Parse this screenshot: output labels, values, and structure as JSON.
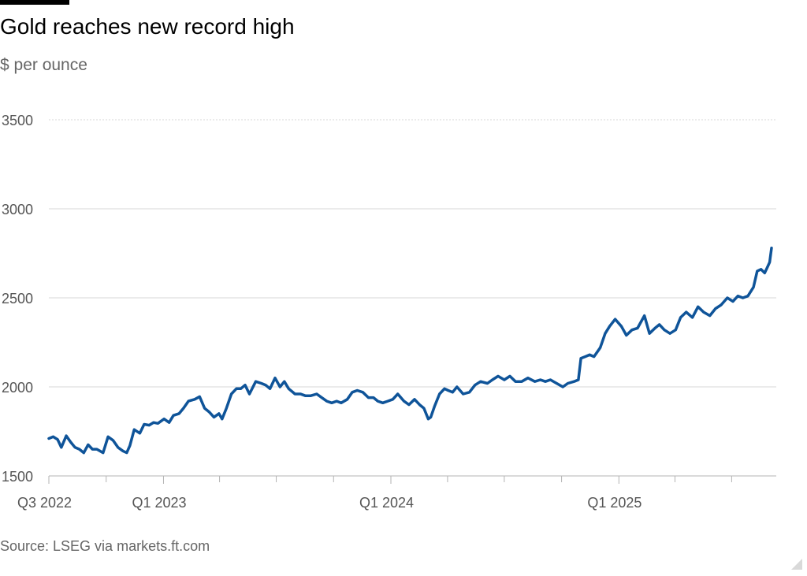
{
  "header": {
    "title": "Gold reaches new record high",
    "subtitle": "$ per ounce"
  },
  "footer": {
    "source": "Source: LSEG via markets.ft.com"
  },
  "colors": {
    "line": "#0f5499",
    "grid": "#d7d7d7",
    "tick_text": "#555555",
    "axis": "#b3b3b3"
  },
  "chart_data": {
    "type": "line",
    "title": "Gold reaches new record high",
    "ylabel": "$ per ounce",
    "xlabel": "",
    "ylim": [
      1500,
      3500
    ],
    "yticks": [
      1500,
      2000,
      2500,
      3000,
      3500
    ],
    "xlim": [
      "2022-07-01",
      "2025-09-03"
    ],
    "x_tick_labels": [
      {
        "date": "2022-07-01",
        "label": "Q3 2022"
      },
      {
        "date": "2023-01-01",
        "label": "Q1 2023"
      },
      {
        "date": "2024-01-01",
        "label": "Q1 2024"
      },
      {
        "date": "2025-01-01",
        "label": "Q1 2025"
      }
    ],
    "x_minor_ticks": [
      "2022-10-01",
      "2023-04-01",
      "2023-07-01",
      "2023-10-01",
      "2024-04-01",
      "2024-07-01",
      "2024-10-01",
      "2025-04-01",
      "2025-07-01"
    ],
    "grid": true,
    "series": [
      {
        "points": [
          [
            "2022-07-01",
            1710
          ],
          [
            "2022-07-08",
            1720
          ],
          [
            "2022-07-15",
            1705
          ],
          [
            "2022-07-21",
            1660
          ],
          [
            "2022-07-29",
            1725
          ],
          [
            "2022-08-05",
            1690
          ],
          [
            "2022-08-12",
            1660
          ],
          [
            "2022-08-19",
            1650
          ],
          [
            "2022-08-26",
            1630
          ],
          [
            "2022-09-02",
            1675
          ],
          [
            "2022-09-09",
            1650
          ],
          [
            "2022-09-16",
            1650
          ],
          [
            "2022-09-26",
            1630
          ],
          [
            "2022-10-04",
            1720
          ],
          [
            "2022-10-12",
            1700
          ],
          [
            "2022-10-20",
            1660
          ],
          [
            "2022-10-28",
            1640
          ],
          [
            "2022-11-03",
            1630
          ],
          [
            "2022-11-08",
            1670
          ],
          [
            "2022-11-15",
            1760
          ],
          [
            "2022-11-24",
            1740
          ],
          [
            "2022-12-01",
            1790
          ],
          [
            "2022-12-09",
            1785
          ],
          [
            "2022-12-16",
            1800
          ],
          [
            "2022-12-23",
            1795
          ],
          [
            "2023-01-02",
            1820
          ],
          [
            "2023-01-10",
            1800
          ],
          [
            "2023-01-17",
            1840
          ],
          [
            "2023-01-26",
            1850
          ],
          [
            "2023-02-02",
            1880
          ],
          [
            "2023-02-10",
            1920
          ],
          [
            "2023-02-20",
            1930
          ],
          [
            "2023-02-28",
            1945
          ],
          [
            "2023-03-08",
            1880
          ],
          [
            "2023-03-15",
            1860
          ],
          [
            "2023-03-23",
            1830
          ],
          [
            "2023-03-31",
            1850
          ],
          [
            "2023-04-05",
            1820
          ],
          [
            "2023-04-12",
            1880
          ],
          [
            "2023-04-20",
            1960
          ],
          [
            "2023-04-28",
            1990
          ],
          [
            "2023-05-05",
            1990
          ],
          [
            "2023-05-12",
            2010
          ],
          [
            "2023-05-19",
            1960
          ],
          [
            "2023-05-29",
            2030
          ],
          [
            "2023-06-07",
            2020
          ],
          [
            "2023-06-14",
            2010
          ],
          [
            "2023-06-21",
            1990
          ],
          [
            "2023-06-29",
            2050
          ],
          [
            "2023-07-07",
            2000
          ],
          [
            "2023-07-14",
            2030
          ],
          [
            "2023-07-21",
            1990
          ],
          [
            "2023-07-31",
            1960
          ],
          [
            "2023-08-09",
            1960
          ],
          [
            "2023-08-17",
            1950
          ],
          [
            "2023-08-25",
            1950
          ],
          [
            "2023-09-04",
            1960
          ],
          [
            "2023-09-12",
            1940
          ],
          [
            "2023-09-20",
            1920
          ],
          [
            "2023-09-28",
            1910
          ],
          [
            "2023-10-06",
            1920
          ],
          [
            "2023-10-13",
            1910
          ],
          [
            "2023-10-23",
            1930
          ],
          [
            "2023-10-31",
            1970
          ],
          [
            "2023-11-08",
            1980
          ],
          [
            "2023-11-17",
            1970
          ],
          [
            "2023-11-26",
            1940
          ],
          [
            "2023-12-04",
            1940
          ],
          [
            "2023-12-11",
            1920
          ],
          [
            "2023-12-19",
            1910
          ],
          [
            "2023-12-27",
            1920
          ],
          [
            "2024-01-04",
            1930
          ],
          [
            "2024-01-12",
            1960
          ],
          [
            "2024-01-22",
            1920
          ],
          [
            "2024-01-30",
            1900
          ],
          [
            "2024-02-08",
            1930
          ],
          [
            "2024-02-16",
            1900
          ],
          [
            "2024-02-23",
            1880
          ],
          [
            "2024-03-01",
            1820
          ],
          [
            "2024-03-05",
            1830
          ],
          [
            "2024-03-11",
            1890
          ],
          [
            "2024-03-19",
            1960
          ],
          [
            "2024-03-27",
            1990
          ],
          [
            "2024-04-02",
            1980
          ],
          [
            "2024-04-09",
            1970
          ],
          [
            "2024-04-16",
            2000
          ],
          [
            "2024-04-26",
            1960
          ],
          [
            "2024-05-06",
            1970
          ],
          [
            "2024-05-15",
            2010
          ],
          [
            "2024-05-24",
            2030
          ],
          [
            "2024-06-04",
            2020
          ],
          [
            "2024-06-12",
            2040
          ],
          [
            "2024-06-21",
            2060
          ],
          [
            "2024-07-01",
            2040
          ],
          [
            "2024-07-10",
            2060
          ],
          [
            "2024-07-19",
            2030
          ],
          [
            "2024-07-29",
            2030
          ],
          [
            "2024-08-08",
            2050
          ],
          [
            "2024-08-19",
            2030
          ],
          [
            "2024-08-28",
            2040
          ],
          [
            "2024-09-05",
            2030
          ],
          [
            "2024-09-13",
            2040
          ],
          [
            "2024-09-23",
            2020
          ],
          [
            "2024-10-03",
            2000
          ],
          [
            "2024-10-11",
            2020
          ],
          [
            "2024-10-21",
            2030
          ],
          [
            "2024-10-28",
            2040
          ],
          [
            "2024-11-01",
            2160
          ],
          [
            "2024-11-08",
            2170
          ],
          [
            "2024-11-15",
            2180
          ],
          [
            "2024-11-22",
            2170
          ],
          [
            "2024-12-02",
            2220
          ],
          [
            "2024-12-10",
            2300
          ],
          [
            "2024-12-17",
            2340
          ],
          [
            "2024-12-26",
            2380
          ],
          [
            "2025-01-05",
            2340
          ],
          [
            "2025-01-13",
            2290
          ],
          [
            "2025-01-22",
            2320
          ],
          [
            "2025-01-31",
            2330
          ],
          [
            "2025-02-11",
            2400
          ],
          [
            "2025-02-19",
            2300
          ],
          [
            "2025-02-28",
            2330
          ],
          [
            "2025-03-07",
            2350
          ],
          [
            "2025-03-15",
            2320
          ],
          [
            "2025-03-24",
            2300
          ],
          [
            "2025-04-02",
            2320
          ],
          [
            "2025-04-10",
            2390
          ],
          [
            "2025-04-19",
            2420
          ],
          [
            "2025-04-29",
            2390
          ],
          [
            "2025-05-08",
            2450
          ],
          [
            "2025-05-17",
            2420
          ],
          [
            "2025-05-27",
            2400
          ],
          [
            "2025-06-05",
            2440
          ],
          [
            "2025-06-14",
            2460
          ],
          [
            "2025-06-24",
            2500
          ],
          [
            "2025-07-03",
            2480
          ],
          [
            "2025-07-11",
            2510
          ],
          [
            "2025-07-19",
            2500
          ],
          [
            "2025-07-27",
            2510
          ],
          [
            "2025-08-05",
            2560
          ],
          [
            "2025-08-11",
            2650
          ],
          [
            "2025-08-17",
            2660
          ],
          [
            "2025-08-23",
            2640
          ],
          [
            "2025-08-27",
            2670
          ],
          [
            "2025-08-31",
            2700
          ],
          [
            "2025-09-03",
            2780
          ]
        ]
      }
    ]
  }
}
